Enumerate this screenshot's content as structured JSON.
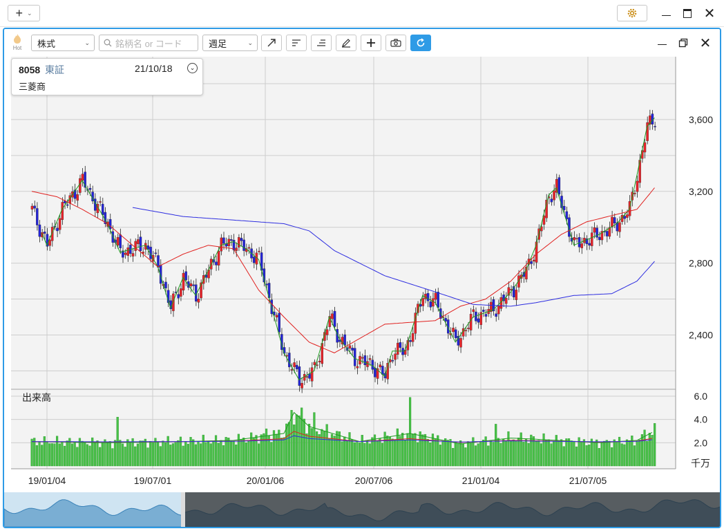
{
  "app": {
    "new_tab_icon": "plus-icon",
    "settings_icon": "gear-icon"
  },
  "toolbar": {
    "logo_label": "Hot",
    "market_select": "株式",
    "search_placeholder": "銘柄名 or コード",
    "period_select": "週足",
    "tools": [
      "trend-line-icon",
      "align-left-icon",
      "align-right-icon",
      "pencil-icon",
      "crosshair-icon",
      "camera-icon",
      "refresh-icon"
    ]
  },
  "ticker": {
    "code": "8058",
    "exchange": "東証",
    "date": "21/10/18",
    "name": "三菱商"
  },
  "price_axis": [
    "3,600",
    "3,200",
    "2,800",
    "2,400"
  ],
  "volume_axis": [
    "6.0",
    "4.0",
    "2.0"
  ],
  "volume_title": "出来高",
  "volume_unit": "千万",
  "date_axis": [
    "19/01/04",
    "19/07/01",
    "20/01/06",
    "20/07/06",
    "21/01/04",
    "21/07/05"
  ],
  "colors": {
    "up": "#e8232a",
    "down": "#2424d6",
    "ma_short": "#1f9a1f",
    "ma_mid": "#e0201e",
    "ma_long": "#2d2de0",
    "volume": "#48c048",
    "accent": "#2e9be6"
  },
  "chart_data": {
    "type": "candlestick",
    "y_range": [
      2000,
      3800
    ],
    "volume_range": [
      0,
      6.0
    ],
    "ma_mid_anchors": [
      [
        0,
        3200
      ],
      [
        10,
        3170
      ],
      [
        20,
        3100
      ],
      [
        30,
        3020
      ],
      [
        40,
        2900
      ],
      [
        50,
        2780
      ],
      [
        60,
        2850
      ],
      [
        70,
        2900
      ],
      [
        80,
        2880
      ],
      [
        90,
        2650
      ],
      [
        100,
        2500
      ],
      [
        110,
        2360
      ],
      [
        120,
        2300
      ],
      [
        130,
        2380
      ],
      [
        140,
        2460
      ],
      [
        150,
        2470
      ],
      [
        160,
        2480
      ],
      [
        170,
        2560
      ],
      [
        180,
        2600
      ],
      [
        190,
        2700
      ],
      [
        200,
        2850
      ],
      [
        210,
        2960
      ],
      [
        220,
        3030
      ],
      [
        240,
        3100
      ],
      [
        247,
        3220
      ]
    ],
    "ma_long_anchors": [
      [
        40,
        3110
      ],
      [
        60,
        3060
      ],
      [
        80,
        3040
      ],
      [
        100,
        3020
      ],
      [
        110,
        2980
      ],
      [
        120,
        2870
      ],
      [
        140,
        2730
      ],
      [
        160,
        2640
      ],
      [
        175,
        2570
      ],
      [
        190,
        2560
      ],
      [
        200,
        2580
      ],
      [
        215,
        2620
      ],
      [
        230,
        2630
      ],
      [
        240,
        2700
      ],
      [
        247,
        2810
      ]
    ],
    "price_anchors": [
      [
        0,
        3100
      ],
      [
        6,
        2900
      ],
      [
        12,
        3100
      ],
      [
        20,
        3260
      ],
      [
        30,
        3020
      ],
      [
        35,
        2860
      ],
      [
        45,
        2900
      ],
      [
        50,
        2780
      ],
      [
        55,
        2550
      ],
      [
        60,
        2720
      ],
      [
        65,
        2620
      ],
      [
        75,
        2900
      ],
      [
        80,
        2920
      ],
      [
        85,
        2880
      ],
      [
        90,
        2820
      ],
      [
        100,
        2300
      ],
      [
        106,
        2150
      ],
      [
        112,
        2200
      ],
      [
        118,
        2500
      ],
      [
        122,
        2380
      ],
      [
        128,
        2270
      ],
      [
        135,
        2230
      ],
      [
        140,
        2170
      ],
      [
        143,
        2310
      ],
      [
        148,
        2310
      ],
      [
        155,
        2620
      ],
      [
        160,
        2580
      ],
      [
        168,
        2360
      ],
      [
        175,
        2500
      ],
      [
        183,
        2540
      ],
      [
        190,
        2640
      ],
      [
        196,
        2760
      ],
      [
        200,
        2900
      ],
      [
        205,
        3180
      ],
      [
        208,
        3220
      ],
      [
        215,
        2900
      ],
      [
        225,
        2960
      ],
      [
        232,
        3020
      ],
      [
        237,
        3100
      ],
      [
        240,
        3290
      ],
      [
        244,
        3560
      ],
      [
        247,
        3610
      ]
    ],
    "volume_anchors": [
      [
        0,
        2.1
      ],
      [
        30,
        2.0
      ],
      [
        60,
        2.1
      ],
      [
        80,
        2.2
      ],
      [
        100,
        2.8
      ],
      [
        104,
        4.6
      ],
      [
        110,
        3.4
      ],
      [
        130,
        2.1
      ],
      [
        150,
        2.8
      ],
      [
        170,
        1.9
      ],
      [
        190,
        2.4
      ],
      [
        200,
        2.3
      ],
      [
        225,
        2.0
      ],
      [
        240,
        2.2
      ],
      [
        247,
        3.0
      ]
    ],
    "volume_spikes": [
      [
        34,
        4.2
      ],
      [
        103,
        4.8
      ],
      [
        107,
        5.0
      ],
      [
        112,
        4.6
      ],
      [
        150,
        5.9
      ],
      [
        93,
        3.2
      ],
      [
        184,
        3.6
      ],
      [
        243,
        3.1
      ]
    ]
  }
}
